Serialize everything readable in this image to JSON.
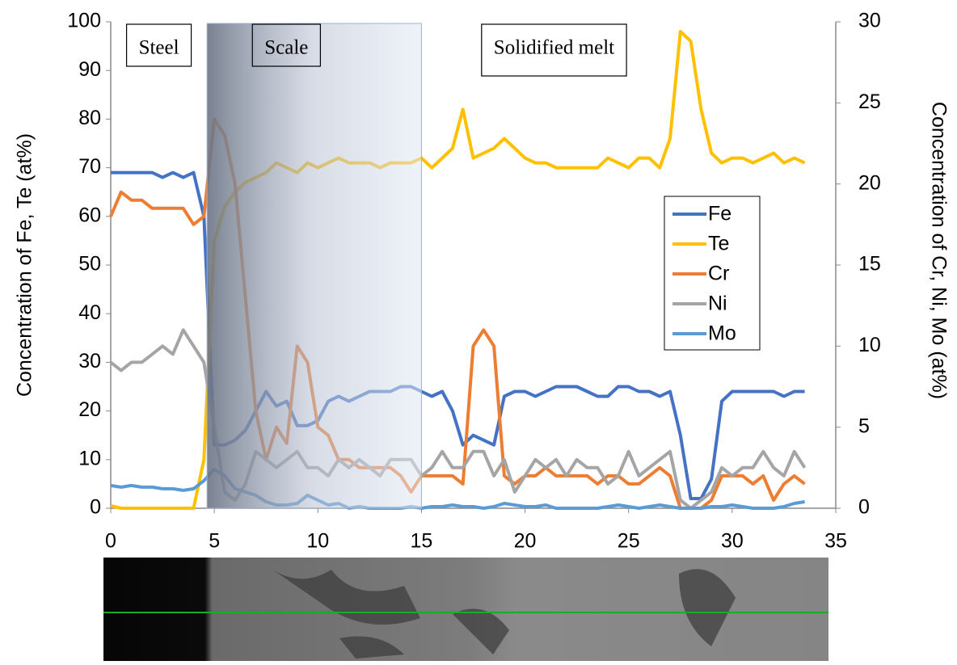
{
  "chart_data": {
    "type": "line",
    "y_label": "Concentration of Fe, Te (at%)",
    "y2_label": "Concentration of Cr, Ni, Mo (at%)",
    "x": [
      0,
      0.5,
      1,
      1.5,
      2,
      2.5,
      3,
      3.5,
      4,
      4.5,
      5,
      5.5,
      6,
      6.5,
      7,
      7.5,
      8,
      8.5,
      9,
      9.5,
      10,
      10.5,
      11,
      11.5,
      12,
      12.5,
      13,
      13.5,
      14,
      14.5,
      15,
      15.5,
      16,
      16.5,
      17,
      17.5,
      18,
      18.5,
      19,
      19.5,
      20,
      20.5,
      21,
      21.5,
      22,
      22.5,
      23,
      23.5,
      24,
      24.5,
      25,
      25.5,
      26,
      26.5,
      27,
      27.5,
      28,
      28.5,
      29,
      29.5,
      30,
      30.5,
      31,
      31.5,
      32,
      32.5,
      33,
      33.5
    ],
    "series": [
      {
        "name": "Fe",
        "color": "#4472c4",
        "axis": "y",
        "values": [
          69,
          69,
          69,
          69,
          69,
          68,
          69,
          68,
          69,
          60,
          13,
          13,
          14,
          16,
          20,
          24,
          21,
          22,
          17,
          17,
          18,
          22,
          23,
          22,
          23,
          24,
          24,
          24,
          25,
          25,
          24,
          23,
          24,
          20,
          13,
          15,
          14,
          13,
          23,
          24,
          24,
          23,
          24,
          25,
          25,
          25,
          24,
          23,
          23,
          25,
          25,
          24,
          24,
          23,
          24,
          15,
          2,
          2,
          6,
          22,
          24,
          24,
          24,
          24,
          24,
          23,
          24,
          24
        ]
      },
      {
        "name": "Te",
        "color": "#ffc000",
        "axis": "y",
        "values": [
          0.5,
          0,
          0,
          0,
          0,
          0,
          0,
          0,
          0,
          10,
          55,
          62,
          65,
          67,
          68,
          69,
          71,
          70,
          69,
          71,
          70,
          71,
          72,
          71,
          71,
          71,
          70,
          71,
          71,
          71,
          72,
          70,
          72,
          74,
          82,
          72,
          73,
          74,
          76,
          74,
          72,
          71,
          71,
          70,
          70,
          70,
          70,
          70,
          72,
          71,
          70,
          72,
          72,
          70,
          76,
          98,
          96,
          82,
          73,
          71,
          72,
          72,
          71,
          72,
          73,
          71,
          72,
          71
        ]
      },
      {
        "name": "Cr",
        "color": "#ed7d31",
        "axis": "y2",
        "values": [
          18,
          19.5,
          19,
          19,
          18.5,
          18.5,
          18.5,
          18.5,
          17.5,
          18,
          24,
          23,
          20,
          13,
          6,
          3,
          5,
          4,
          10,
          9,
          5,
          4.5,
          3,
          3,
          2.5,
          2.5,
          2.5,
          2.5,
          2,
          1,
          2,
          2,
          2,
          2,
          1.5,
          10,
          11,
          10,
          2,
          1.5,
          2,
          2,
          2.5,
          2,
          2,
          2,
          2,
          1.5,
          2,
          2,
          1.5,
          1.5,
          2,
          2.5,
          2,
          0,
          0,
          0,
          0.5,
          2,
          2,
          2,
          1.5,
          2,
          0.5,
          1.5,
          2,
          1.5
        ]
      },
      {
        "name": "Ni",
        "color": "#a5a5a5",
        "axis": "y2",
        "values": [
          9,
          8.5,
          9,
          9,
          9.5,
          10,
          9.5,
          11,
          10,
          9,
          5,
          1,
          0.5,
          1.5,
          3.5,
          3,
          2.5,
          3,
          3.5,
          2.5,
          2.5,
          2,
          3,
          2.5,
          3,
          2.5,
          2,
          3,
          3,
          3,
          2,
          2.5,
          3.5,
          2.5,
          2.5,
          3.5,
          3.5,
          2,
          3,
          1,
          2,
          3,
          2.5,
          3,
          2,
          3,
          2.5,
          2.5,
          1.5,
          2,
          3.5,
          2,
          2.5,
          3,
          3.5,
          0.5,
          0,
          0.5,
          1,
          2.5,
          2,
          2.5,
          2.5,
          3.5,
          2.5,
          2,
          3.5,
          2.5
        ]
      },
      {
        "name": "Mo",
        "color": "#5b9bd5",
        "axis": "y2",
        "values": [
          1.4,
          1.3,
          1.4,
          1.3,
          1.3,
          1.2,
          1.2,
          1.1,
          1.2,
          1.7,
          2.4,
          2,
          1.2,
          1,
          0.8,
          0.4,
          0.2,
          0.2,
          0.3,
          0.8,
          0.5,
          0.2,
          0.3,
          0,
          0.1,
          0,
          0,
          0,
          0,
          0.1,
          0,
          0.1,
          0.1,
          0.2,
          0.1,
          0.1,
          0,
          0.1,
          0.3,
          0.2,
          0.1,
          0.1,
          0.2,
          0,
          0,
          0,
          0,
          0,
          0.1,
          0.2,
          0.1,
          0,
          0.1,
          0.2,
          0.1,
          0,
          0,
          0,
          0.1,
          0.1,
          0.2,
          0.1,
          0,
          0,
          0,
          0.1,
          0.3,
          0.4
        ]
      }
    ],
    "xlim": [
      0,
      35
    ],
    "xticks": [
      0,
      5,
      10,
      15,
      20,
      25,
      30,
      35
    ],
    "ylim": [
      0,
      100
    ],
    "yticks": [
      0,
      10,
      20,
      30,
      40,
      50,
      60,
      70,
      80,
      90,
      100
    ],
    "y2lim": [
      0,
      30
    ],
    "y2ticks": [
      0,
      5,
      10,
      15,
      20,
      25,
      30
    ],
    "legend": "right",
    "regions": [
      {
        "label": "Steel",
        "x": [
          0,
          4.65
        ]
      },
      {
        "label": "Scale",
        "x": [
          4.65,
          15
        ],
        "shaded": true
      },
      {
        "label": "Solidified melt",
        "x": [
          15,
          35
        ]
      }
    ]
  }
}
